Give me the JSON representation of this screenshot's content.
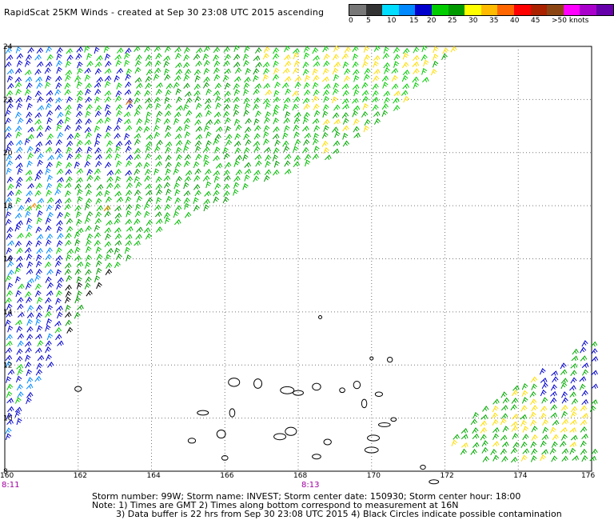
{
  "header": {
    "title": "RapidScat 25KM Winds - created at Sep 30 23:08 UTC 2015 ascending"
  },
  "scale": {
    "colors": [
      "#777777",
      "#333333",
      "#00ddff",
      "#0088ff",
      "#0000cc",
      "#00cc00",
      "#009900",
      "#ffff00",
      "#ffbb00",
      "#ff6600",
      "#ff0000",
      "#aa2200",
      "#8b4513",
      "#ff00ff",
      "#aa00cc",
      "#6600aa"
    ],
    "labels": [
      "0",
      "5",
      "10",
      "15",
      "20",
      "25",
      "30",
      "35",
      "40",
      "45",
      ">50 knots"
    ]
  },
  "chart_data": {
    "type": "wind-barb map",
    "title": "RapidScat 25KM Winds - created at Sep 30 23:08 UTC 2015 ascending",
    "x_ticks": [
      "160",
      "162",
      "164",
      "166",
      "168",
      "170",
      "172",
      "174",
      "176"
    ],
    "y_ticks": [
      "24",
      "22",
      "20",
      "18",
      "16",
      "14",
      "12",
      "10",
      "8"
    ],
    "xlim": [
      160,
      176
    ],
    "ylim": [
      8,
      24
    ],
    "grid": true,
    "swaths": [
      {
        "name": "west",
        "polygon_lonlat": [
          [
            160,
            24
          ],
          [
            172.4,
            24
          ],
          [
            171.0,
            21.9
          ],
          [
            169.0,
            19.8
          ],
          [
            166.8,
            18.6
          ],
          [
            164.0,
            16.8
          ],
          [
            162.2,
            14.4
          ],
          [
            161.0,
            11.5
          ],
          [
            160.3,
            9.6
          ],
          [
            160,
            9
          ]
        ]
      },
      {
        "name": "east",
        "polygon_lonlat": [
          [
            176,
            13.0
          ],
          [
            176,
            8.2
          ],
          [
            173.0,
            8.2
          ],
          [
            171.9,
            9.0
          ],
          [
            173.3,
            10.6
          ],
          [
            175.1,
            12.1
          ]
        ]
      }
    ],
    "islands_lonlat": [
      [
        166.25,
        11.35
      ],
      [
        166.9,
        11.3
      ],
      [
        167.7,
        11.05
      ],
      [
        168.5,
        11.18
      ],
      [
        168.0,
        10.95
      ],
      [
        169.6,
        11.25
      ],
      [
        169.2,
        11.05
      ],
      [
        170.2,
        10.9
      ],
      [
        169.8,
        10.55
      ],
      [
        170.6,
        9.95
      ],
      [
        170.35,
        9.75
      ],
      [
        170.05,
        9.25
      ],
      [
        167.5,
        9.3
      ],
      [
        168.8,
        9.1
      ],
      [
        167.8,
        9.5
      ],
      [
        165.9,
        9.4
      ],
      [
        165.1,
        9.15
      ],
      [
        166.0,
        8.5
      ],
      [
        168.5,
        8.55
      ],
      [
        171.4,
        8.15
      ],
      [
        171.7,
        7.6
      ],
      [
        170.5,
        12.2
      ],
      [
        170.0,
        8.8
      ],
      [
        166.2,
        10.2
      ],
      [
        165.4,
        10.2
      ],
      [
        162.0,
        11.1
      ]
    ],
    "contamination_markers_lonlat": [
      [
        170.0,
        12.25
      ],
      [
        168.6,
        13.8
      ]
    ]
  },
  "time_labels": {
    "left": "8:11",
    "center": "8:13"
  },
  "footer": {
    "line1": "Storm number: 99W;  Storm name: INVEST;  Storm center date: 150930;  Storm center hour: 18:00",
    "line2": "Note: 1) Times are GMT  2) Times along bottom correspond to measurement at 16N",
    "line3": "3) Data buffer is 22 hrs from Sep 30 23:08 UTC 2015  4) Black Circles indicate possible contamination"
  }
}
